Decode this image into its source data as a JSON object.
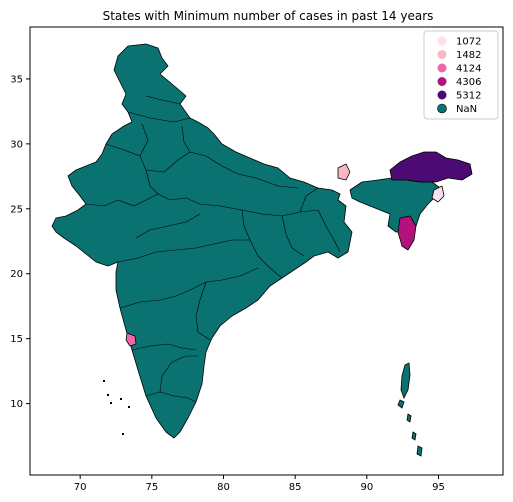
{
  "chart_data": {
    "type": "choropleth",
    "title": "States with Minimum number of cases in past 14 years",
    "xlabel": "",
    "ylabel": "",
    "xlim": [
      66.5,
      99.5
    ],
    "ylim": [
      4.5,
      39
    ],
    "xticks": [
      70,
      75,
      80,
      85,
      90,
      95
    ],
    "yticks": [
      10,
      15,
      20,
      25,
      30,
      35
    ],
    "grid": false,
    "legend_position": "top-right",
    "legend": [
      {
        "label": "1072",
        "color": "#fde0ef"
      },
      {
        "label": "1482",
        "color": "#f9b8c2"
      },
      {
        "label": "4124",
        "color": "#f067a6"
      },
      {
        "label": "4306",
        "color": "#b4117d"
      },
      {
        "label": "5312",
        "color": "#4b0b72"
      },
      {
        "label": "NaN",
        "color": "#0b7272"
      }
    ],
    "regions": [
      {
        "key": "mainland",
        "category": "NaN",
        "color": "#0b7272"
      },
      {
        "key": "northeast",
        "category": "NaN",
        "color": "#0b7272"
      },
      {
        "key": "arunachal",
        "category": "5312",
        "color": "#4b0b72"
      },
      {
        "key": "mizoram",
        "category": "4306",
        "color": "#b4117d"
      },
      {
        "key": "goa",
        "category": "4124",
        "color": "#f067a6"
      },
      {
        "key": "sikkim",
        "category": "1482",
        "color": "#f9b8c2"
      },
      {
        "key": "nagaland",
        "category": "1072",
        "color": "#fde0ef"
      },
      {
        "key": "andaman",
        "category": "NaN",
        "color": "#0b7272"
      }
    ]
  }
}
